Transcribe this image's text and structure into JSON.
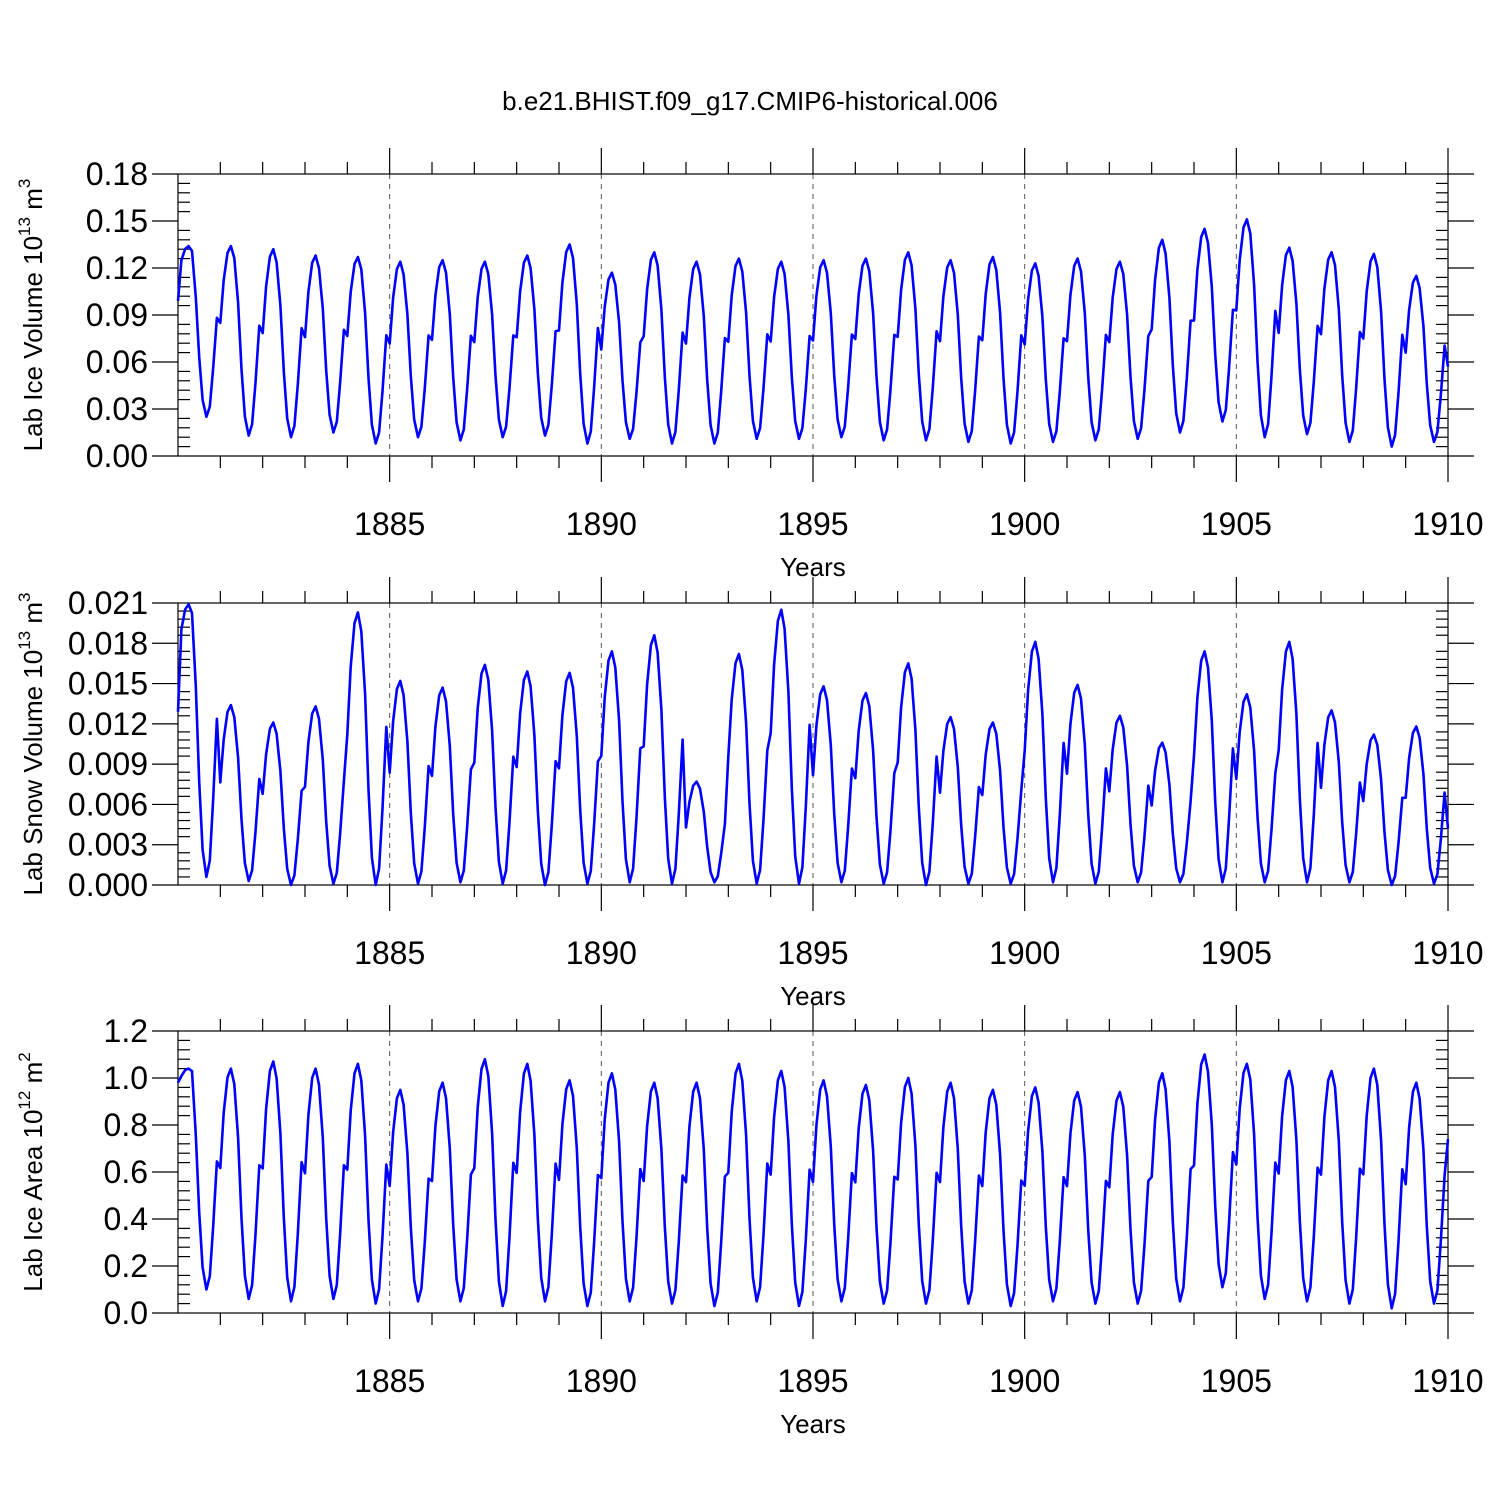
{
  "title": "b.e21.BHIST.f09_g17.CMIP6-historical.006",
  "chart_data": [
    {
      "type": "line",
      "ylabel": "Lab Ice Volume 10",
      "ylabel_exp": "13",
      "ylabel_unit": " m",
      "ylabel_unit_exp": "3",
      "xlabel": "Years",
      "xlim": [
        1880,
        1910
      ],
      "ylim": [
        0,
        0.18
      ],
      "yticks": [
        "0.00",
        "0.03",
        "0.06",
        "0.09",
        "0.12",
        "0.15",
        "0.18"
      ],
      "xticks": [
        "1885",
        "1890",
        "1895",
        "1900",
        "1905",
        "1910"
      ],
      "grid": "dashed vertical at major x ticks",
      "series": [
        {
          "color": "#0000ff",
          "peaks": [
            0.134,
            0.134,
            0.132,
            0.128,
            0.127,
            0.124,
            0.125,
            0.124,
            0.128,
            0.135,
            0.117,
            0.13,
            0.124,
            0.126,
            0.124,
            0.125,
            0.126,
            0.13,
            0.125,
            0.127,
            0.123,
            0.126,
            0.124,
            0.138,
            0.145,
            0.151,
            0.133,
            0.13,
            0.129,
            0.115
          ],
          "troughs": [
            0.025,
            0.013,
            0.012,
            0.015,
            0.008,
            0.012,
            0.01,
            0.012,
            0.013,
            0.008,
            0.011,
            0.008,
            0.008,
            0.011,
            0.011,
            0.012,
            0.01,
            0.01,
            0.009,
            0.008,
            0.009,
            0.01,
            0.011,
            0.015,
            0.022,
            0.012,
            0.014,
            0.009,
            0.006,
            0.009
          ],
          "start": 0.099,
          "end": 0.057
        }
      ]
    },
    {
      "type": "line",
      "ylabel": "Lab Snow Volume 10",
      "ylabel_exp": "13",
      "ylabel_unit": " m",
      "ylabel_unit_exp": "3",
      "xlabel": "Years",
      "xlim": [
        1880,
        1910
      ],
      "ylim": [
        0,
        0.021
      ],
      "yticks": [
        "0.000",
        "0.003",
        "0.006",
        "0.009",
        "0.012",
        "0.015",
        "0.018",
        "0.021"
      ],
      "xticks": [
        "1885",
        "1890",
        "1895",
        "1900",
        "1905",
        "1910"
      ],
      "grid": "dashed vertical at major x ticks",
      "series": [
        {
          "color": "#0000ff",
          "peaks": [
            0.0209,
            0.0134,
            0.0121,
            0.0133,
            0.0203,
            0.0152,
            0.0147,
            0.0164,
            0.0159,
            0.0158,
            0.0174,
            0.0186,
            0.0077,
            0.0172,
            0.0205,
            0.0148,
            0.0143,
            0.0165,
            0.0125,
            0.0121,
            0.0181,
            0.0149,
            0.0126,
            0.0106,
            0.0174,
            0.0142,
            0.0181,
            0.013,
            0.0112,
            0.0118
          ],
          "troughs": [
            0.0006,
            0.0003,
            0.0,
            0.0001,
            0.0,
            0.0001,
            0.0002,
            0.0001,
            0.0,
            0.0001,
            0.0002,
            0.0001,
            0.0002,
            0.0001,
            0.0001,
            0.0002,
            0.0001,
            0.0,
            0.0001,
            0.0001,
            0.0002,
            0.0001,
            0.0002,
            0.0002,
            0.0002,
            0.0002,
            0.0002,
            0.0002,
            0.0,
            0.0001
          ],
          "start": 0.0129,
          "end": 0.0042
        }
      ]
    },
    {
      "type": "line",
      "ylabel": "Lab Ice Area 10",
      "ylabel_exp": "12",
      "ylabel_unit": " m",
      "ylabel_unit_exp": "2",
      "xlabel": "Years",
      "xlim": [
        1880,
        1910
      ],
      "ylim": [
        0,
        1.2
      ],
      "yticks": [
        "0.0",
        "0.2",
        "0.4",
        "0.6",
        "0.8",
        "1.0",
        "1.2"
      ],
      "xticks": [
        "1885",
        "1890",
        "1895",
        "1900",
        "1905",
        "1910"
      ],
      "grid": "dashed vertical at major x ticks",
      "series": [
        {
          "color": "#0000ff",
          "peaks": [
            1.04,
            1.04,
            1.07,
            1.04,
            1.06,
            0.95,
            0.98,
            1.08,
            1.06,
            0.99,
            1.02,
            0.98,
            0.98,
            1.06,
            1.03,
            0.99,
            0.97,
            1.0,
            0.98,
            0.95,
            0.96,
            0.94,
            0.94,
            1.02,
            1.1,
            1.06,
            1.03,
            1.03,
            1.04,
            0.98
          ],
          "troughs": [
            0.1,
            0.06,
            0.05,
            0.06,
            0.04,
            0.05,
            0.05,
            0.03,
            0.05,
            0.03,
            0.05,
            0.04,
            0.03,
            0.05,
            0.03,
            0.05,
            0.04,
            0.04,
            0.04,
            0.03,
            0.05,
            0.04,
            0.04,
            0.05,
            0.11,
            0.06,
            0.05,
            0.04,
            0.02,
            0.04
          ],
          "start": 0.98,
          "end": 0.74
        }
      ]
    }
  ]
}
